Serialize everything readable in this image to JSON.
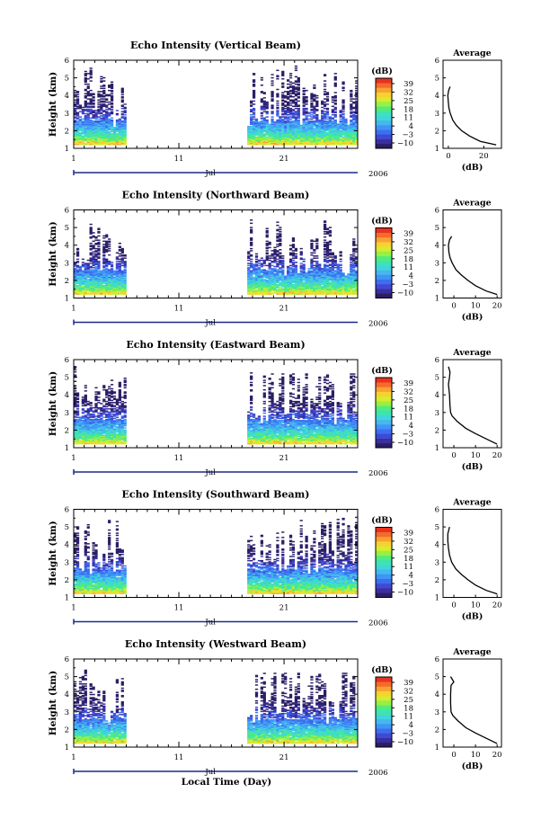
{
  "figure": {
    "colorbar_unit": "(dB)",
    "colorbar_ticks": [
      "39",
      "32",
      "25",
      "18",
      "11",
      "4",
      "−3",
      "−10"
    ],
    "colorbar_palette": [
      "#2a1e66",
      "#3a2f9e",
      "#3f49d6",
      "#3d6ef0",
      "#3f95f6",
      "#45b8ee",
      "#3ed6da",
      "#3ee3b4",
      "#52ec7a",
      "#99ef45",
      "#d8ec2e",
      "#f7d131",
      "#f9a132",
      "#f46b2c",
      "#e8321f"
    ],
    "xlabel": "Local Time (Day)",
    "month_label": "Jul",
    "year_label": "2006",
    "x_ticks": [
      "1",
      "11",
      "21"
    ],
    "y_ticks": [
      "1",
      "2",
      "3",
      "4",
      "5",
      "6"
    ],
    "ylabel": "Height (km)",
    "avg_title": "Average",
    "avg_xlabel": "(dB)"
  },
  "chart_data": [
    {
      "type": "heatmap",
      "title": "Echo Intensity (Vertical Beam)",
      "ylabel": "Height (km)",
      "xlabel": "Local Time (Day)",
      "xlim": [
        1,
        28
      ],
      "ylim": [
        1,
        6
      ],
      "zlim": [
        -10,
        39
      ],
      "data_segments_days": [
        [
          1,
          6
        ],
        [
          17.5,
          28
        ]
      ],
      "profile": {
        "title": "Average",
        "xlabel": "(dB)",
        "xlim": [
          -3,
          30
        ],
        "x_ticks": [
          "0",
          "20"
        ],
        "height_km": [
          1.2,
          1.4,
          1.7,
          2.0,
          2.3,
          2.6,
          3.0,
          3.3,
          3.6,
          4.0,
          4.3,
          4.5
        ],
        "intensity_db": [
          27,
          18,
          12,
          7.5,
          4.5,
          2.5,
          1.0,
          0.3,
          0.0,
          -0.3,
          0.2,
          1.0
        ]
      }
    },
    {
      "type": "heatmap",
      "title": "Echo Intensity (Northward Beam)",
      "ylabel": "Height (km)",
      "xlabel": "Local Time (Day)",
      "xlim": [
        1,
        28
      ],
      "ylim": [
        1,
        6
      ],
      "zlim": [
        -10,
        39
      ],
      "data_segments_days": [
        [
          1,
          6
        ],
        [
          17.5,
          28
        ]
      ],
      "profile": {
        "title": "Average",
        "xlabel": "(dB)",
        "xlim": [
          -5,
          22
        ],
        "x_ticks": [
          "0",
          "10",
          "20"
        ],
        "height_km": [
          1.2,
          1.4,
          1.7,
          2.0,
          2.3,
          2.6,
          3.0,
          3.3,
          3.6,
          4.0,
          4.3,
          4.5
        ],
        "intensity_db": [
          20,
          15,
          10,
          6.5,
          3.5,
          1.0,
          -0.8,
          -1.8,
          -2.3,
          -2.5,
          -2.0,
          -1.0
        ]
      }
    },
    {
      "type": "heatmap",
      "title": "Echo Intensity (Eastward Beam)",
      "ylabel": "Height (km)",
      "xlabel": "Local Time (Day)",
      "xlim": [
        1,
        28
      ],
      "ylim": [
        1,
        6
      ],
      "zlim": [
        -10,
        39
      ],
      "data_segments_days": [
        [
          1,
          6
        ],
        [
          17.5,
          28
        ]
      ],
      "profile": {
        "title": "Average",
        "xlabel": "(dB)",
        "xlim": [
          -5,
          22
        ],
        "x_ticks": [
          "0",
          "10",
          "20"
        ],
        "height_km": [
          1.2,
          1.5,
          1.8,
          2.1,
          2.5,
          2.8,
          3.0,
          3.4,
          4.0,
          4.6,
          5.0,
          5.3,
          5.6
        ],
        "intensity_db": [
          20,
          15,
          10,
          5.5,
          1.5,
          -0.8,
          -1.5,
          -1.8,
          -2.0,
          -2.5,
          -2.0,
          -1.8,
          -2.5
        ]
      }
    },
    {
      "type": "heatmap",
      "title": "Echo Intensity (Southward Beam)",
      "ylabel": "Height (km)",
      "xlabel": "Local Time (Day)",
      "xlim": [
        1,
        28
      ],
      "ylim": [
        1,
        6
      ],
      "zlim": [
        -10,
        39
      ],
      "data_segments_days": [
        [
          1,
          6
        ],
        [
          17.5,
          28
        ]
      ],
      "profile": {
        "title": "Average",
        "xlabel": "(dB)",
        "xlim": [
          -5,
          22
        ],
        "x_ticks": [
          "0",
          "10",
          "20"
        ],
        "height_km": [
          1.2,
          1.4,
          1.7,
          2.0,
          2.3,
          2.6,
          3.0,
          3.4,
          3.8,
          4.2,
          4.6,
          5.0
        ],
        "intensity_db": [
          20,
          15,
          10,
          6.5,
          3.5,
          1.0,
          -1.0,
          -2.0,
          -2.5,
          -2.8,
          -2.8,
          -2.0
        ]
      }
    },
    {
      "type": "heatmap",
      "title": "Echo Intensity (Westward Beam)",
      "ylabel": "Height (km)",
      "xlabel": "Local Time (Day)",
      "xlim": [
        1,
        28
      ],
      "ylim": [
        1,
        6
      ],
      "zlim": [
        -10,
        39
      ],
      "data_segments_days": [
        [
          1,
          6
        ],
        [
          17.5,
          28
        ]
      ],
      "profile": {
        "title": "Average",
        "xlabel": "(dB)",
        "xlim": [
          -5,
          22
        ],
        "x_ticks": [
          "0",
          "10",
          "20"
        ],
        "height_km": [
          1.2,
          1.5,
          1.8,
          2.1,
          2.5,
          2.8,
          3.0,
          3.5,
          4.0,
          4.5,
          4.7,
          5.0
        ],
        "intensity_db": [
          20,
          15,
          10,
          5.5,
          1.8,
          -0.5,
          -1.3,
          -1.5,
          -1.5,
          -1.3,
          0.0,
          -1.5
        ]
      }
    }
  ]
}
